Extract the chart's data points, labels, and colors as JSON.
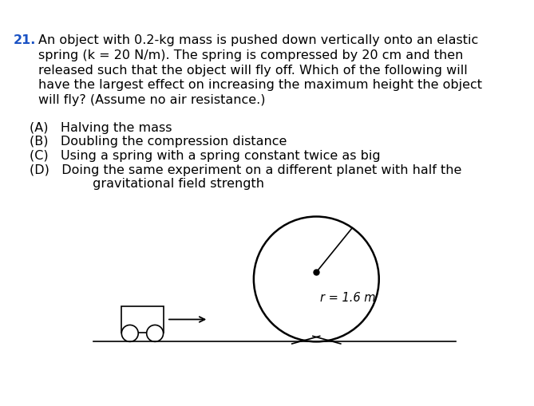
{
  "question_number": "21.",
  "question_color": "#1a52c4",
  "text_color": "#000000",
  "background_color": "#ffffff",
  "q_lines": [
    "An object with 0.2-kg mass is pushed down vertically onto an elastic",
    "spring (k = 20 N/m). The spring is compressed by 20 cm and then",
    "released such that the object will fly off. Which of the following will",
    "have the largest effect on increasing the maximum height the object",
    "will fly? (Assume no air resistance.)"
  ],
  "options": [
    "(A)   Halving the mass",
    "(B)   Doubling the compression distance",
    "(C)   Using a spring with a spring constant twice as big",
    "(D)   Doing the same experiment on a different planet with half the",
    "         gravitational field strength"
  ],
  "radius_label": "r = 1.6 m",
  "font_size_q": 11.5,
  "font_size_label": 10.5,
  "fig_width": 6.69,
  "fig_height": 5.09,
  "dpi": 100
}
